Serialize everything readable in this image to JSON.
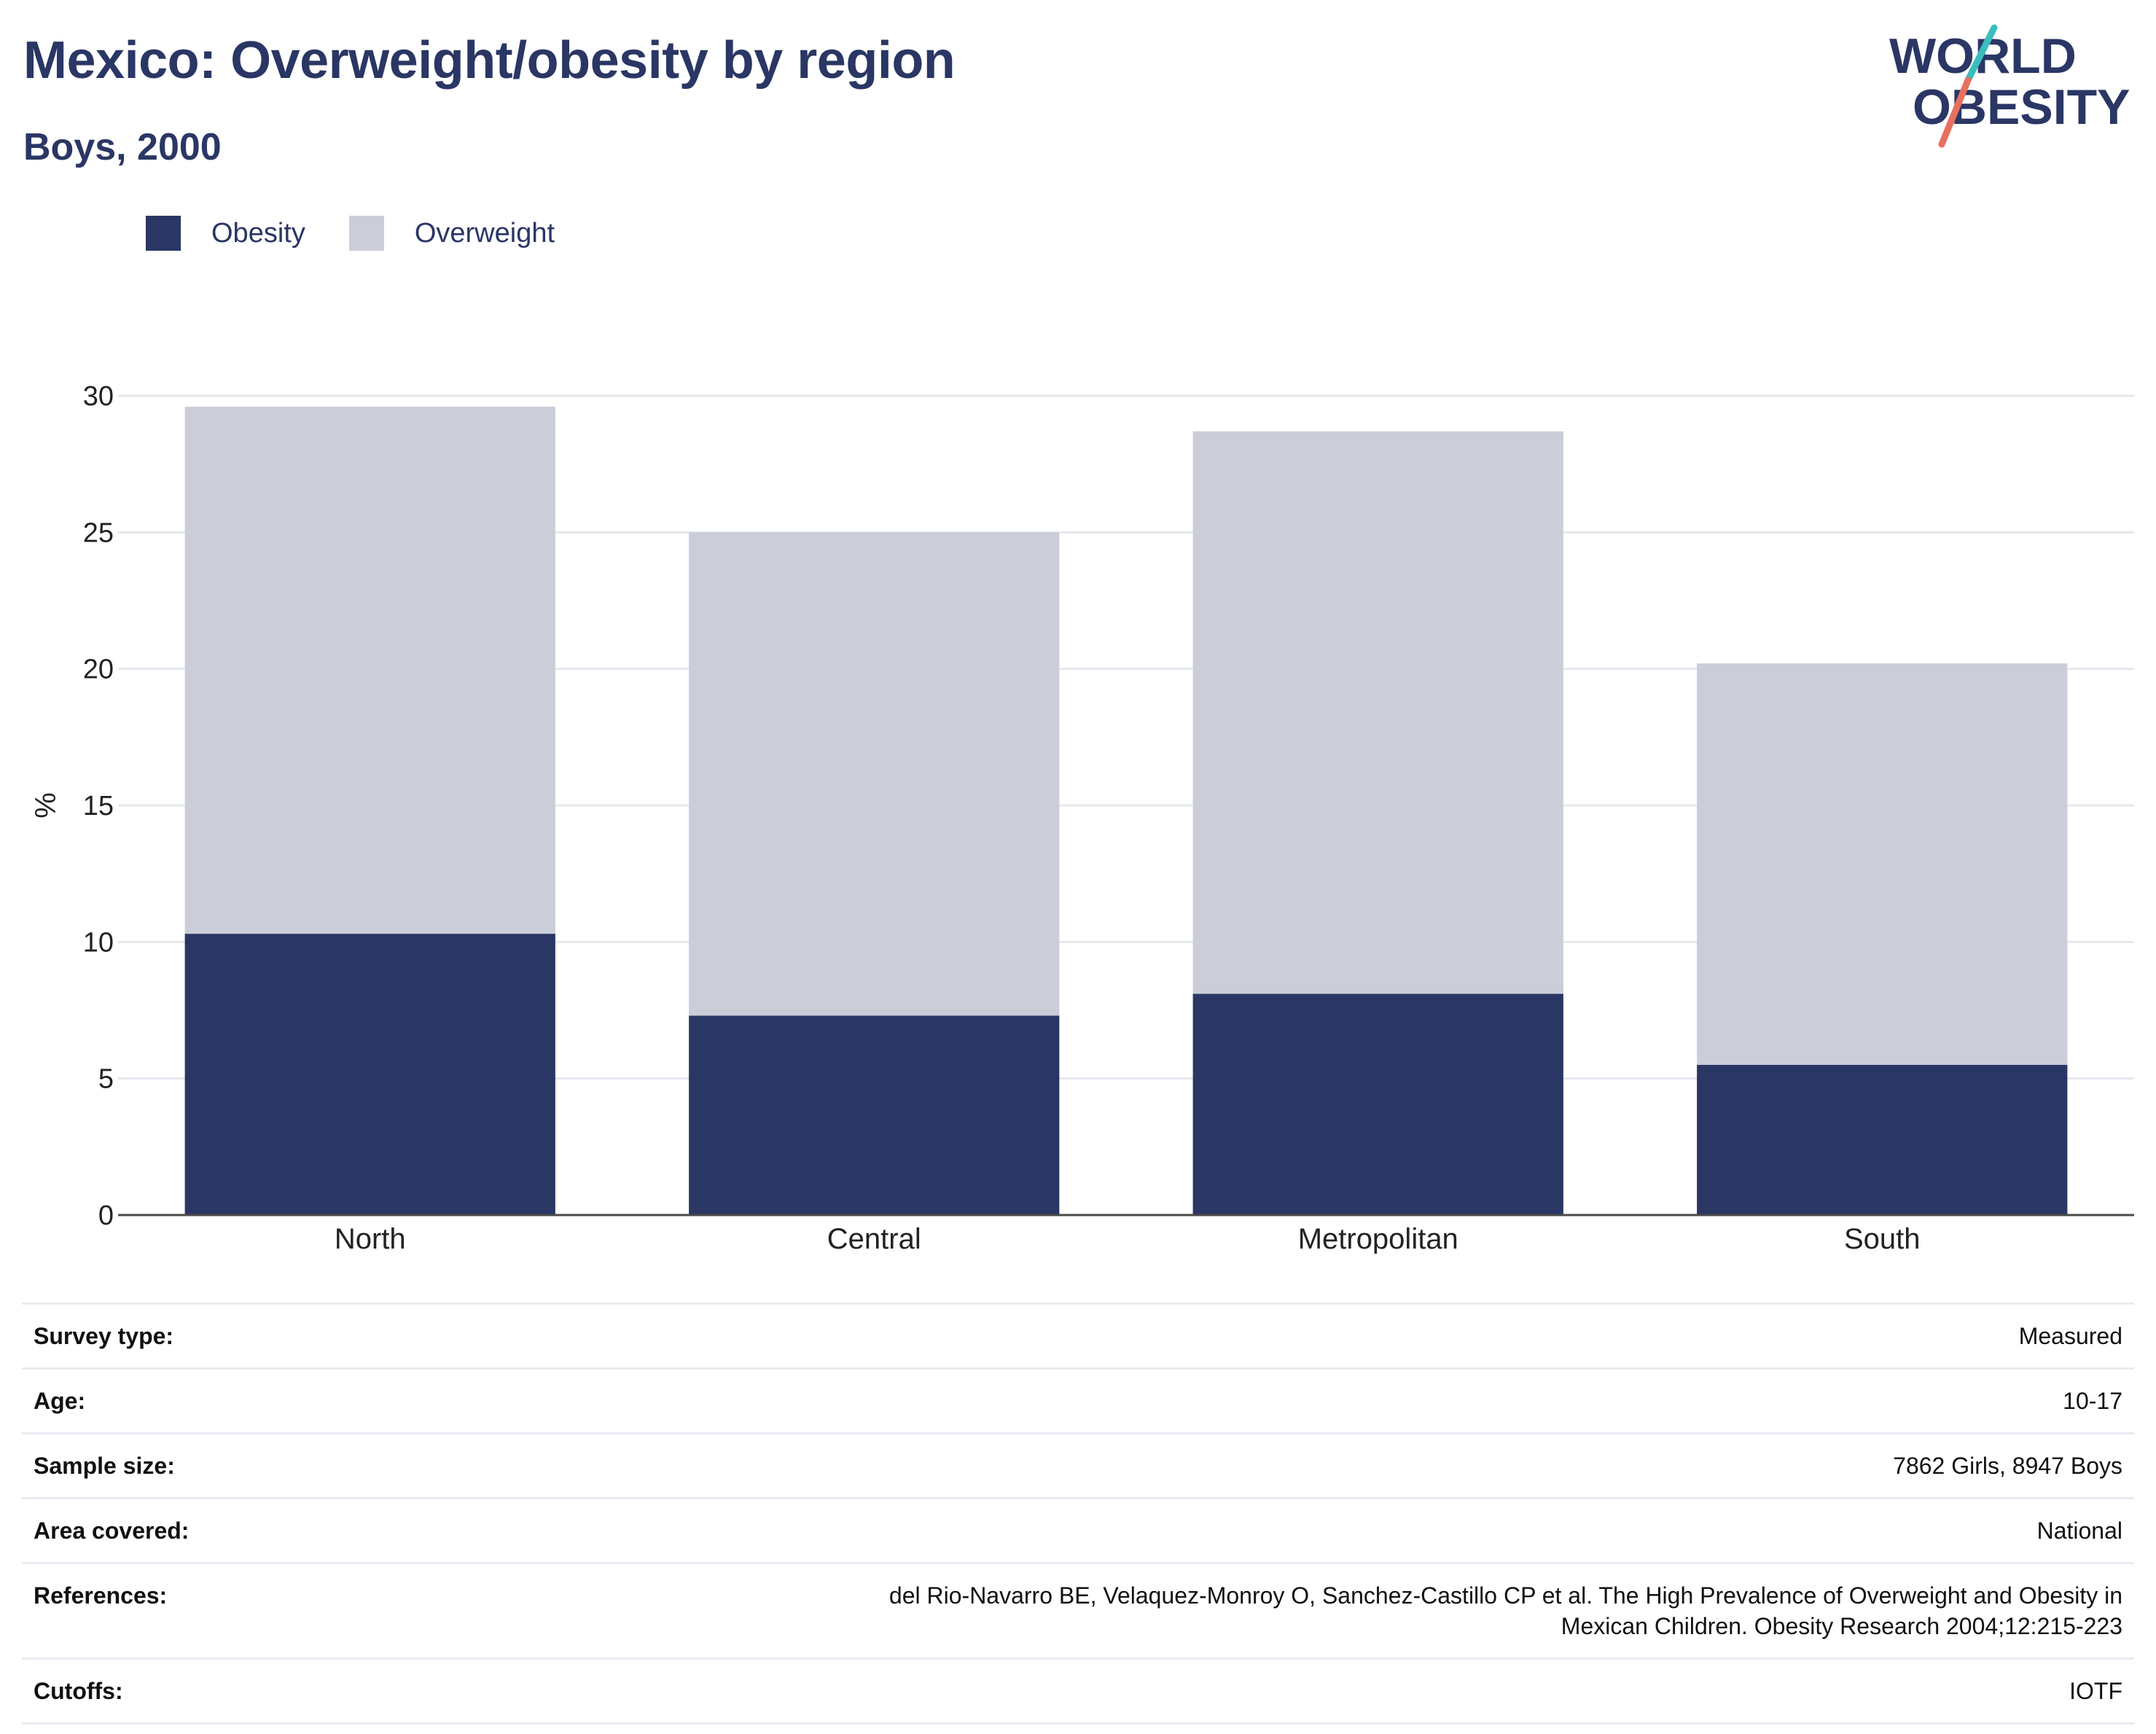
{
  "header": {
    "title": "Mexico: Overweight/obesity by region",
    "subtitle": "Boys, 2000"
  },
  "logo": {
    "line1": "WORLD",
    "line2": "OBESITY",
    "colors": {
      "text": "#2a3664",
      "slash_top": "#3bbdbd",
      "slash_bottom": "#e8705f"
    }
  },
  "colors": {
    "obesity": "#2a3664",
    "overweight": "#cbcdd9",
    "grid": "#e6e8ee",
    "axis": "#4a4a4a",
    "text": "#2a3664"
  },
  "chart_data": {
    "type": "bar",
    "stacked": true,
    "categories": [
      "North",
      "Central",
      "Metropolitan",
      "South"
    ],
    "series": [
      {
        "name": "Obesity",
        "values": [
          10.3,
          7.3,
          8.1,
          5.5
        ]
      },
      {
        "name": "Overweight",
        "values": [
          19.3,
          17.7,
          20.6,
          14.7
        ]
      }
    ],
    "totals": [
      29.6,
      25.0,
      28.7,
      20.2
    ],
    "title": "",
    "xlabel": "",
    "ylabel": "%",
    "ylim": [
      0,
      30
    ],
    "yticks": [
      0,
      5,
      10,
      15,
      20,
      25,
      30
    ],
    "grid": true,
    "legend_position": "top-left"
  },
  "metadata": {
    "rows": [
      {
        "label": "Survey type:",
        "value": "Measured"
      },
      {
        "label": "Age:",
        "value": "10-17"
      },
      {
        "label": "Sample size:",
        "value": "7862 Girls, 8947 Boys"
      },
      {
        "label": "Area covered:",
        "value": "National"
      },
      {
        "label": "References:",
        "value": "del Rio-Navarro BE, Velaquez-Monroy O, Sanchez-Castillo CP et al. The High Prevalence of Overweight and Obesity in Mexican Children. Obesity Research 2004;12:215-223"
      },
      {
        "label": "Cutoffs:",
        "value": "IOTF"
      }
    ]
  }
}
